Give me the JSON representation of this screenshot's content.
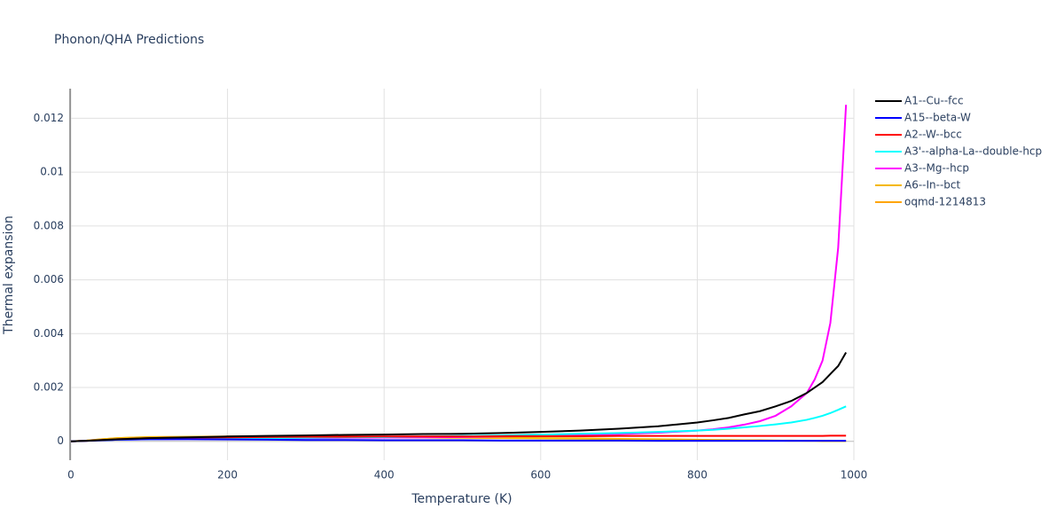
{
  "chart_data": {
    "type": "line",
    "title": "Phonon/QHA Predictions",
    "x_label": "Temperature (K)",
    "y_label": "Thermal expansion",
    "x": [
      0,
      20,
      40,
      60,
      80,
      100,
      150,
      200,
      250,
      300,
      350,
      400,
      450,
      500,
      550,
      600,
      650,
      700,
      750,
      800,
      820,
      840,
      860,
      880,
      900,
      920,
      940,
      950,
      960,
      970,
      980,
      990
    ],
    "xlim": [
      0,
      1000
    ],
    "xticks": [
      0,
      200,
      400,
      600,
      800,
      1000
    ],
    "ylim": [
      -0.0007,
      0.0131
    ],
    "yticks": [
      0,
      0.002,
      0.004,
      0.006,
      0.008,
      0.01,
      0.012
    ],
    "grid": true,
    "legend": "right",
    "series": [
      {
        "name": "A1--Cu--fcc",
        "color": "#000000",
        "values": [
          0,
          2e-05,
          5e-05,
          8e-05,
          0.0001,
          0.00012,
          0.00015,
          0.00018,
          0.0002,
          0.00022,
          0.00024,
          0.00025,
          0.00027,
          0.00028,
          0.00031,
          0.00035,
          0.0004,
          0.00047,
          0.00056,
          0.0007,
          0.00078,
          0.00087,
          0.001,
          0.00112,
          0.0013,
          0.0015,
          0.0018,
          0.002,
          0.0022,
          0.0025,
          0.0028,
          0.0033
        ]
      },
      {
        "name": "A15--beta-W",
        "color": "#0000ff",
        "values": [
          0,
          2e-05,
          4e-05,
          6e-05,
          7e-05,
          8e-05,
          8e-05,
          7e-05,
          6e-05,
          5e-05,
          5e-05,
          4e-05,
          4e-05,
          4e-05,
          3e-05,
          3e-05,
          3e-05,
          3e-05,
          2e-05,
          2e-05,
          2e-05,
          2e-05,
          2e-05,
          2e-05,
          2e-05,
          2e-05,
          2e-05,
          2e-05,
          2e-05,
          2e-05,
          2e-05,
          2e-05
        ]
      },
      {
        "name": "A2--W--bcc",
        "color": "#ff0000",
        "values": [
          0,
          2e-05,
          5e-05,
          8e-05,
          0.0001,
          0.00012,
          0.00014,
          0.00015,
          0.00016,
          0.00017,
          0.00017,
          0.00018,
          0.00018,
          0.00018,
          0.00019,
          0.00019,
          0.00019,
          0.0002,
          0.0002,
          0.0002,
          0.0002,
          0.0002,
          0.0002,
          0.0002,
          0.0002,
          0.0002,
          0.0002,
          0.0002,
          0.0002,
          0.00021,
          0.00021,
          0.00021
        ]
      },
      {
        "name": "A3'--alpha-La--double-hcp",
        "color": "#00ffff",
        "values": [
          0,
          2e-05,
          4e-05,
          6e-05,
          7e-05,
          8e-05,
          0.0001,
          0.00011,
          0.00012,
          0.00013,
          0.00015,
          0.00016,
          0.00018,
          0.0002,
          0.00022,
          0.00025,
          0.00028,
          0.00031,
          0.00035,
          0.0004,
          0.00043,
          0.00047,
          0.00052,
          0.00057,
          0.00063,
          0.0007,
          0.0008,
          0.00087,
          0.00095,
          0.00105,
          0.00117,
          0.0013
        ]
      },
      {
        "name": "A3--Mg--hcp",
        "color": "#ff00ff",
        "values": [
          0,
          2e-05,
          4e-05,
          6e-05,
          7e-05,
          8e-05,
          9e-05,
          0.0001,
          0.00011,
          0.00012,
          0.00013,
          0.00014,
          0.00015,
          0.00016,
          0.00018,
          0.0002,
          0.00023,
          0.00027,
          0.00032,
          0.0004,
          0.00045,
          0.00052,
          0.00062,
          0.00075,
          0.00095,
          0.0013,
          0.0018,
          0.0023,
          0.003,
          0.0044,
          0.0072,
          0.0125
        ]
      },
      {
        "name": "A6--In--bct",
        "color": "#f5b800",
        "values": [
          0,
          3e-05,
          8e-05,
          0.00012,
          0.00014,
          0.00015,
          0.00016,
          0.00017,
          0.00017,
          0.00017,
          0.00016,
          0.00015,
          0.00014,
          0.00013,
          0.00012,
          0.00011,
          0.0001,
          8e-05,
          7e-05,
          5e-05,
          5e-05,
          4e-05,
          4e-05,
          3e-05,
          3e-05,
          2e-05,
          2e-05,
          2e-05,
          1e-05,
          1e-05,
          1e-05,
          1e-05
        ]
      },
      {
        "name": "oqmd-1214813",
        "color": "#ffa500",
        "values": [
          0,
          3e-05,
          8e-05,
          0.00012,
          0.00014,
          0.00016,
          0.00017,
          0.00018,
          0.00018,
          0.00018,
          0.00017,
          0.00016,
          0.00015,
          0.00014,
          0.00013,
          0.00012,
          0.00011,
          9e-05,
          8e-05,
          6e-05,
          5e-05,
          5e-05,
          4e-05,
          4e-05,
          3e-05,
          3e-05,
          2e-05,
          2e-05,
          2e-05,
          2e-05,
          1e-05,
          1e-05
        ]
      }
    ]
  }
}
